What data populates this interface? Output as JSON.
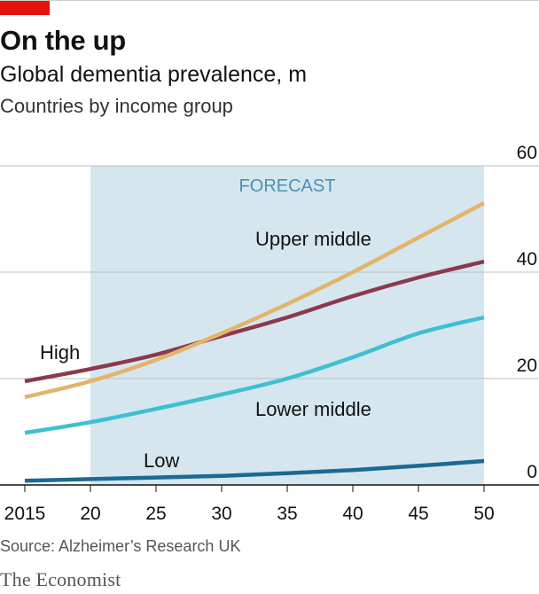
{
  "header": {
    "title": "On the up",
    "subtitle": "Global dementia prevalence, m",
    "subsubtitle": "Countries by income group"
  },
  "footer": {
    "source": "Source: Alzheimer’s Research UK",
    "brand": "The Economist"
  },
  "colors": {
    "accent_red": "#e3120b",
    "forecast_shade": "#d5e6ef",
    "forecast_label": "#4f8fb3",
    "gridline": "#b9c2c9"
  },
  "chart_data": {
    "type": "line",
    "x": [
      2015,
      2020,
      2025,
      2030,
      2035,
      2040,
      2045,
      2050
    ],
    "x_tick_labels": [
      "2015",
      "20",
      "25",
      "30",
      "35",
      "40",
      "45",
      "50"
    ],
    "y_ticks": [
      0,
      20,
      40,
      60
    ],
    "ylim": [
      0,
      60
    ],
    "xlim": [
      2015,
      2050
    ],
    "forecast": {
      "label": "FORECAST",
      "start": 2020,
      "end": 2050
    },
    "grid": true,
    "series": [
      {
        "name": "High",
        "color": "#8b3a4b",
        "values": [
          19.5,
          21.8,
          24.5,
          28,
          31.5,
          35.5,
          39,
          42
        ]
      },
      {
        "name": "Upper middle",
        "color": "#e3b46a",
        "values": [
          16.5,
          19.5,
          23.5,
          28.5,
          34,
          40,
          46.5,
          53
        ]
      },
      {
        "name": "Lower middle",
        "color": "#3ec0d0",
        "values": [
          9.8,
          11.8,
          14.3,
          17,
          20,
          24,
          28.5,
          31.5
        ]
      },
      {
        "name": "Low",
        "color": "#1b6a94",
        "values": [
          0.8,
          1.1,
          1.4,
          1.7,
          2.2,
          2.8,
          3.6,
          4.5
        ]
      }
    ]
  }
}
